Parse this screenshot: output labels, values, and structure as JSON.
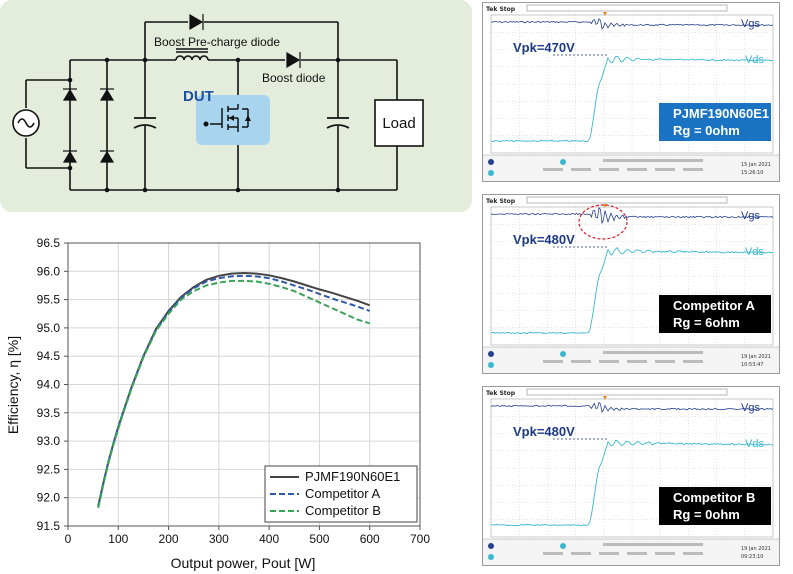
{
  "circuit": {
    "labels": {
      "precharge": "Boost Pre-charge diode",
      "boost": "Boost diode",
      "dut": "DUT",
      "load": "Load"
    }
  },
  "chart_data": {
    "type": "line",
    "title": "",
    "xlabel": "Output power, Pout [W]",
    "ylabel": "Efficiency, η [%]",
    "xlim": [
      0,
      700
    ],
    "ylim": [
      91.5,
      96.5
    ],
    "xticks": [
      "0",
      "100",
      "200",
      "300",
      "400",
      "500",
      "600",
      "700"
    ],
    "yticks": [
      "91.5",
      "92.0",
      "92.5",
      "93.0",
      "93.5",
      "94.0",
      "94.5",
      "95.0",
      "95.5",
      "96.0",
      "96.5"
    ],
    "grid": true,
    "legend_position": "bottom-right",
    "x": [
      60,
      70,
      80,
      90,
      100,
      110,
      125,
      150,
      175,
      200,
      225,
      250,
      275,
      300,
      325,
      350,
      375,
      400,
      425,
      450,
      475,
      500,
      525,
      550,
      575,
      600
    ],
    "series": [
      {
        "name": "PJMF190N60E1",
        "color": "#444444",
        "dash": "solid",
        "values": [
          91.85,
          92.25,
          92.62,
          92.95,
          93.25,
          93.52,
          93.92,
          94.5,
          94.98,
          95.3,
          95.55,
          95.72,
          95.85,
          95.92,
          95.96,
          95.97,
          95.96,
          95.93,
          95.88,
          95.82,
          95.75,
          95.68,
          95.62,
          95.55,
          95.48,
          95.4
        ]
      },
      {
        "name": "Competitor A",
        "color": "#2e5aa8",
        "dash": "dashed",
        "values": [
          91.85,
          92.25,
          92.62,
          92.95,
          93.25,
          93.52,
          93.92,
          94.5,
          94.96,
          95.28,
          95.53,
          95.7,
          95.82,
          95.88,
          95.91,
          95.92,
          95.91,
          95.88,
          95.82,
          95.75,
          95.68,
          95.6,
          95.52,
          95.45,
          95.38,
          95.3
        ]
      },
      {
        "name": "Competitor B",
        "color": "#3aa35a",
        "dash": "dashed",
        "values": [
          91.82,
          92.22,
          92.6,
          92.93,
          93.22,
          93.5,
          93.9,
          94.48,
          94.95,
          95.25,
          95.5,
          95.65,
          95.75,
          95.8,
          95.83,
          95.83,
          95.82,
          95.78,
          95.72,
          95.65,
          95.55,
          95.45,
          95.35,
          95.25,
          95.15,
          95.08
        ]
      }
    ]
  },
  "scopes": [
    {
      "header": "Tek Stop",
      "vpk": "Vpk=470V",
      "trace1": "Vgs",
      "trace2": "Vds",
      "box_line1": "PJMF190N60E1",
      "box_line2": "Rg = 0ohm",
      "box_color": "#1a73c2",
      "ringing": false,
      "date": "15 Jan 2021",
      "time": "15:26:10"
    },
    {
      "header": "Tek Stop",
      "vpk": "Vpk=480V",
      "trace1": "Vgs",
      "trace2": "Vds",
      "box_line1": "Competitor A",
      "box_line2": "Rg = 6ohm",
      "box_color": "#000000",
      "ringing": true,
      "date": "19 Jan 2021",
      "time": "10:53:47"
    },
    {
      "header": "Tek Stop",
      "vpk": "Vpk=480V",
      "trace1": "Vgs",
      "trace2": "Vds",
      "box_line1": "Competitor B",
      "box_line2": "Rg = 0ohm",
      "box_color": "#000000",
      "ringing": false,
      "date": "19 Jan 2021",
      "time": "09:23:10"
    }
  ]
}
